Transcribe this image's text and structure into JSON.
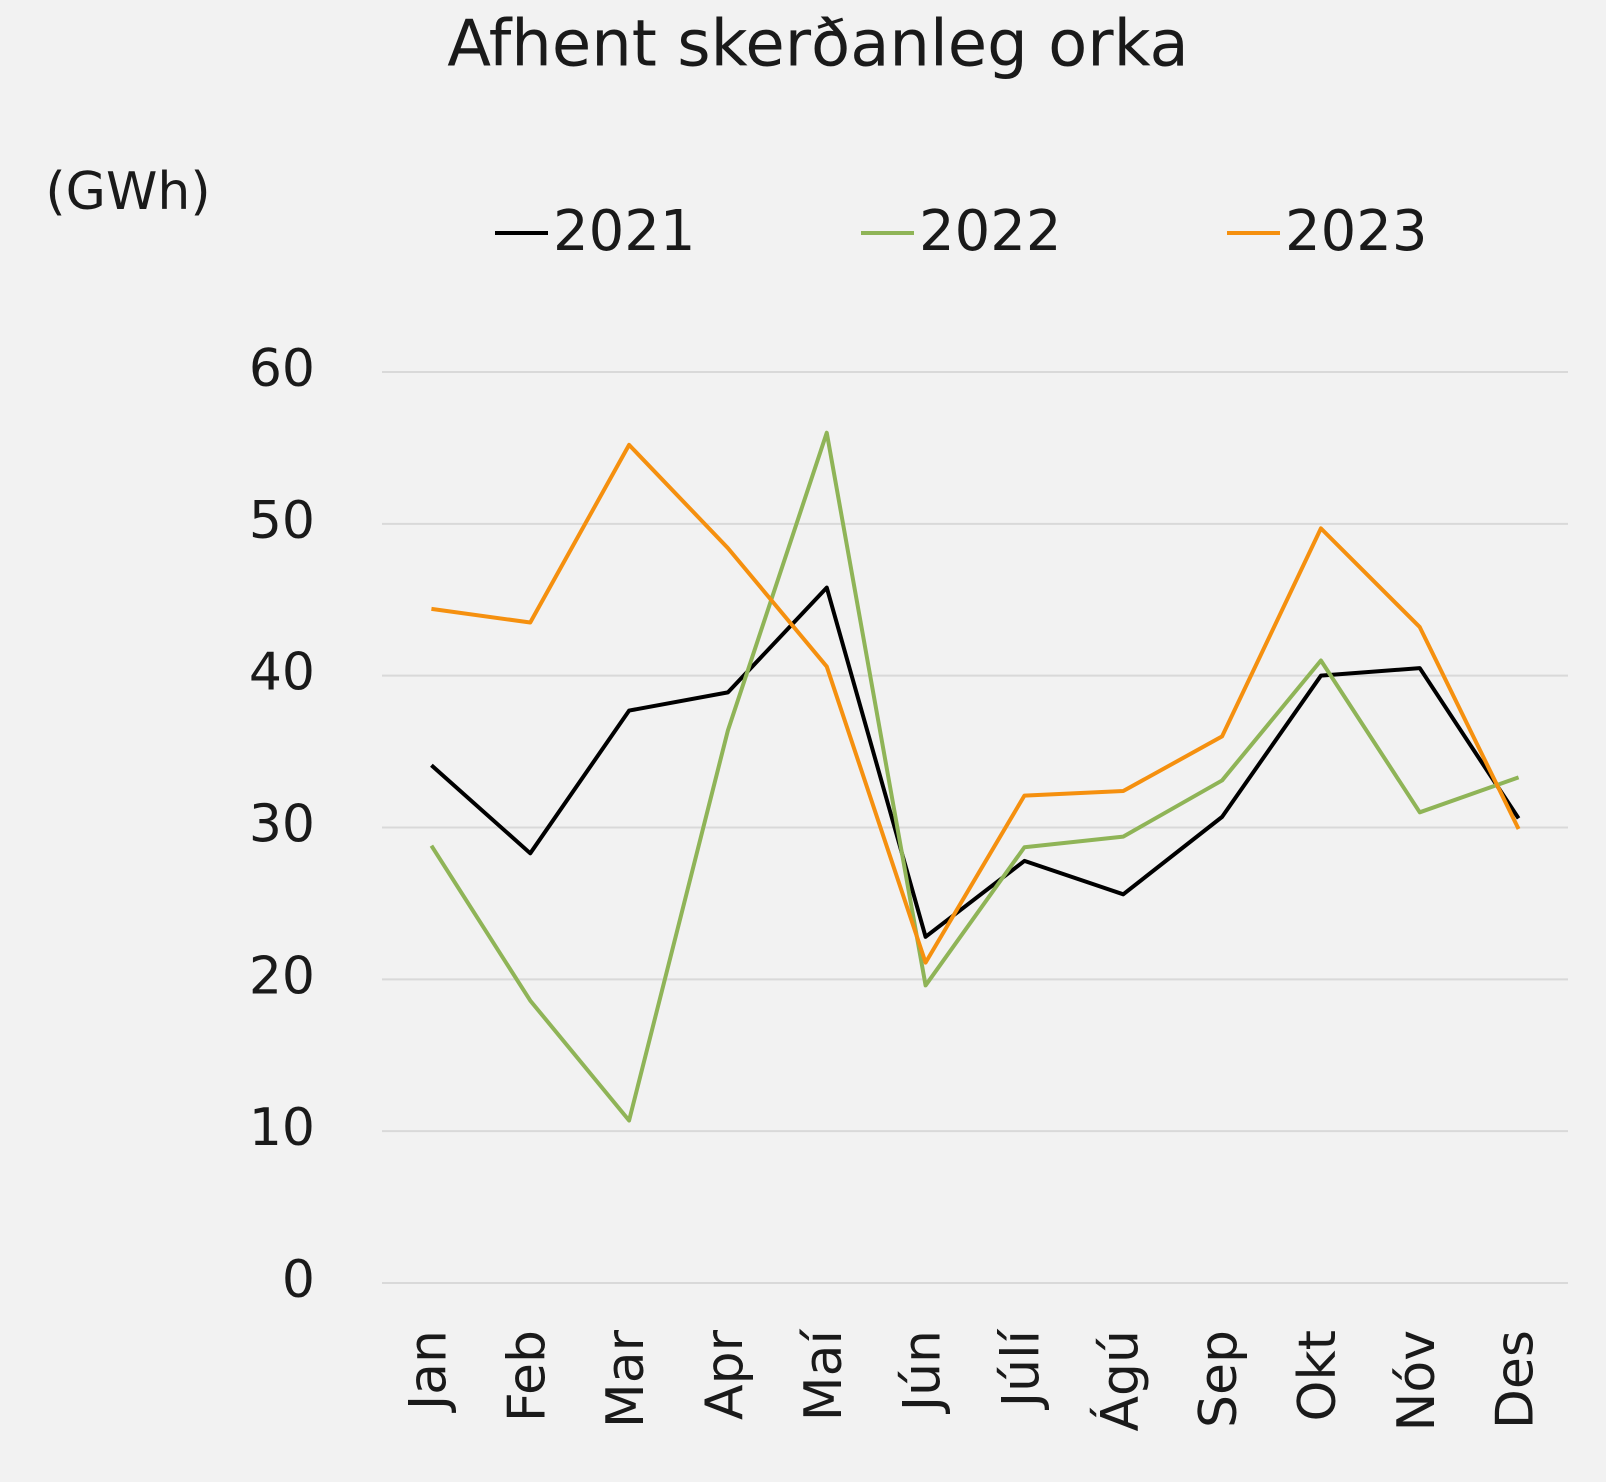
{
  "chart_data": {
    "type": "line",
    "title": "Afhent skerðanleg orka",
    "y_label": "(GWh)",
    "categories": [
      "Jan",
      "Feb",
      "Mar",
      "Apr",
      "Maí",
      "Jún",
      "Júlí",
      "Ágú",
      "Sep",
      "Okt",
      "Nóv",
      "Des"
    ],
    "series": [
      {
        "name": "2021",
        "color": "#000000",
        "values": [
          34.1,
          28.3,
          37.7,
          38.9,
          45.8,
          22.8,
          27.8,
          25.6,
          30.7,
          40.0,
          40.5,
          30.6
        ]
      },
      {
        "name": "2022",
        "color": "#8fb457",
        "values": [
          28.8,
          18.6,
          10.7,
          36.4,
          56.0,
          19.6,
          28.7,
          29.4,
          33.1,
          41.0,
          31.0,
          33.3
        ]
      },
      {
        "name": "2023",
        "color": "#f5900f",
        "values": [
          44.4,
          43.5,
          55.2,
          48.4,
          40.6,
          21.1,
          32.1,
          32.4,
          36.0,
          49.7,
          43.2,
          29.9
        ]
      }
    ],
    "ylim": [
      0,
      60
    ],
    "yticks": [
      0,
      10,
      20,
      30,
      40,
      50,
      60
    ],
    "grid": true,
    "legend": "top"
  }
}
